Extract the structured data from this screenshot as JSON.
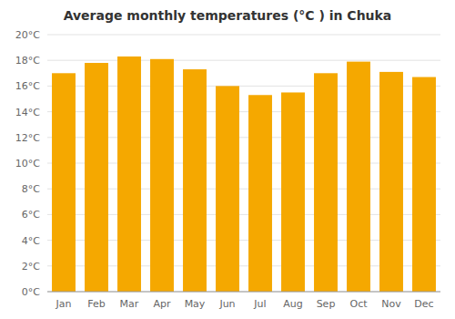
{
  "chart_data": {
    "type": "bar",
    "title": "Average monthly temperatures (°C ) in Chuka",
    "categories": [
      "Jan",
      "Feb",
      "Mar",
      "Apr",
      "May",
      "Jun",
      "Jul",
      "Aug",
      "Sep",
      "Oct",
      "Nov",
      "Dec"
    ],
    "values": [
      17.0,
      17.8,
      18.3,
      18.1,
      17.3,
      16.0,
      15.3,
      15.5,
      17.0,
      17.9,
      17.1,
      16.7
    ],
    "color": "#F5A800",
    "ylim": [
      0,
      20
    ],
    "yticks": [
      {
        "value": 0,
        "label": "0°C"
      },
      {
        "value": 2,
        "label": "2°C"
      },
      {
        "value": 4,
        "label": "4°C"
      },
      {
        "value": 6,
        "label": "6°C"
      },
      {
        "value": 8,
        "label": "8°C"
      },
      {
        "value": 10,
        "label": "10°C"
      },
      {
        "value": 12,
        "label": "12°C"
      },
      {
        "value": 14,
        "label": "14°C"
      },
      {
        "value": 16,
        "label": "16°C"
      },
      {
        "value": 18,
        "label": "18°C"
      },
      {
        "value": 20,
        "label": "20°C"
      }
    ],
    "grid": true
  }
}
